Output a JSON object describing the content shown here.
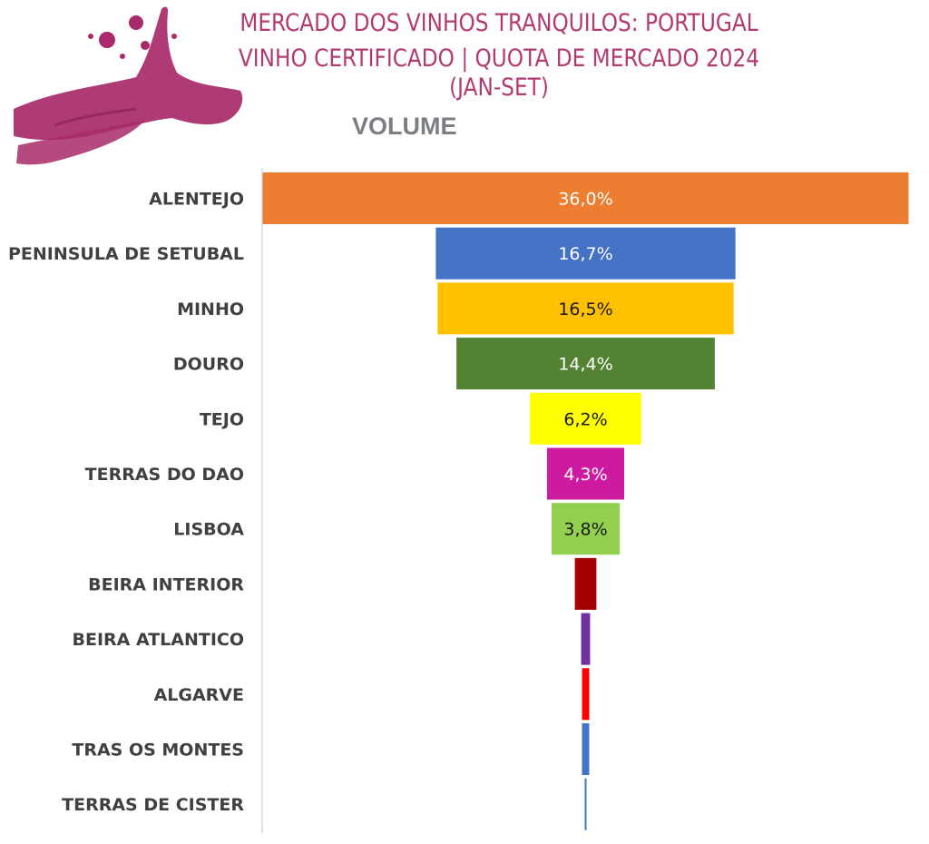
{
  "header": {
    "title_line1": "MERCADO DOS VINHOS TRANQUILOS: PORTUGAL",
    "title_line2": "VINHO CERTIFICADO | QUOTA DE MERCADO 2024 (JAN-SET)",
    "subtitle": "VOLUME",
    "title_color": "#b23a72",
    "logo_icon": "wine-stain-icon"
  },
  "chart_data": {
    "type": "bar",
    "orientation": "horizontal-funnel",
    "title": "MERCADO DOS VINHOS TRANQUILOS: PORTUGAL VINHO CERTIFICADO | QUOTA DE MERCADO 2024 (JAN-SET)",
    "subtitle": "VOLUME",
    "unit": "%",
    "categories": [
      "ALENTEJO",
      "PENINSULA DE SETUBAL",
      "MINHO",
      "DOURO",
      "TEJO",
      "TERRAS DO DAO",
      "LISBOA",
      "BEIRA INTERIOR",
      "BEIRA ATLANTICO",
      "ALGARVE",
      "TRAS OS MONTES",
      "TERRAS DE CISTER"
    ],
    "values": [
      36.0,
      16.7,
      16.5,
      14.4,
      6.2,
      4.3,
      3.8,
      1.2,
      0.5,
      0.4,
      0.4,
      0.1
    ],
    "data_labels": [
      "36,0%",
      "16,7%",
      "16,5%",
      "14,4%",
      "6,2%",
      "4,3%",
      "3,8%",
      "",
      "",
      "",
      "",
      ""
    ],
    "colors": [
      "#ed7d31",
      "#4472c4",
      "#ffc000",
      "#548235",
      "#ffff00",
      "#cc1ba0",
      "#92d050",
      "#a50000",
      "#7030a0",
      "#ff0000",
      "#4472c4",
      "#4472c4"
    ],
    "label_colors": [
      "#ffffff",
      "#ffffff",
      "#1a1a1a",
      "#ffffff",
      "#1a1a1a",
      "#ffffff",
      "#1a1a1a",
      "#ffffff",
      "#ffffff",
      "#ffffff",
      "#ffffff",
      "#ffffff"
    ],
    "legend": "none",
    "grid": false
  }
}
